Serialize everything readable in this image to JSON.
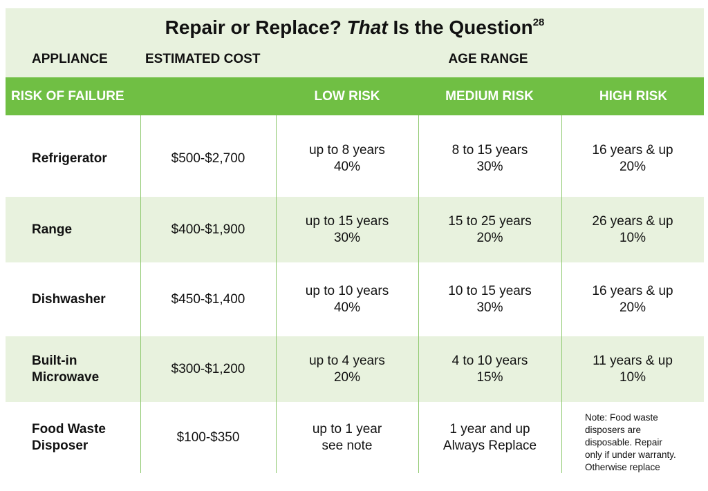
{
  "title": {
    "prefix": "Repair or Replace? ",
    "italic": "That",
    "suffix": " Is the Question",
    "footnote": "28"
  },
  "columns": {
    "appliance": "APPLIANCE",
    "estimated_cost": "ESTIMATED COST",
    "age_range": "AGE RANGE"
  },
  "risk_header": {
    "label": "RISK OF FAILURE",
    "low": "LOW RISK",
    "medium": "MEDIUM RISK",
    "high": "HIGH RISK"
  },
  "rows": [
    {
      "appliance": [
        "Refrigerator"
      ],
      "cost": "$500-$2,700",
      "low": [
        "up to 8 years",
        "40%"
      ],
      "medium": [
        "8 to 15 years",
        "30%"
      ],
      "high": [
        "16 years & up",
        "20%"
      ]
    },
    {
      "appliance": [
        "Range"
      ],
      "cost": "$400-$1,900",
      "low": [
        "up to 15 years",
        "30%"
      ],
      "medium": [
        "15 to 25 years",
        "20%"
      ],
      "high": [
        "26 years & up",
        "10%"
      ]
    },
    {
      "appliance": [
        "Dishwasher"
      ],
      "cost": "$450-$1,400",
      "low": [
        "up to 10 years",
        "40%"
      ],
      "medium": [
        "10 to 15 years",
        "30%"
      ],
      "high": [
        "16 years & up",
        "20%"
      ]
    },
    {
      "appliance": [
        "Built-in",
        "Microwave"
      ],
      "cost": "$300-$1,200",
      "low": [
        "up to 4 years",
        "20%"
      ],
      "medium": [
        "4 to 10 years",
        "15%"
      ],
      "high": [
        "11 years & up",
        "10%"
      ]
    },
    {
      "appliance": [
        "Food Waste",
        "Disposer"
      ],
      "cost": "$100-$350",
      "low": [
        "up to 1 year",
        "see note"
      ],
      "medium": [
        "1 year and up",
        "Always Replace"
      ],
      "high_note": [
        "Note: Food waste",
        "disposers are",
        "disposable. Repair",
        "only if under warranty.",
        "Otherwise replace"
      ]
    }
  ],
  "colors": {
    "green": "#70bf44",
    "light_band": "#e8f2de",
    "divider": "#8fc970"
  }
}
